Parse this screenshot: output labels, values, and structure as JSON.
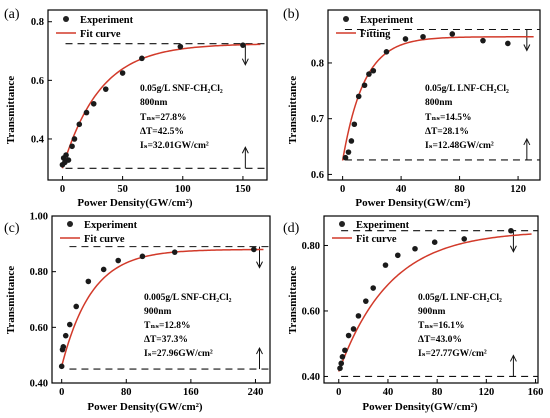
{
  "panels": [
    {
      "label": "(a)",
      "xlabel": "Power Density(GW/cm²)",
      "ylabel": "Transmittance",
      "xlim": [
        -12,
        170
      ],
      "ylim": [
        0.26,
        0.84
      ],
      "xticks": [
        "0",
        "50",
        "100",
        "150"
      ],
      "xtick_values": [
        0,
        50,
        100,
        150
      ],
      "yticks": [
        "0.4",
        "0.6",
        "0.8"
      ],
      "ytick_values": [
        0.4,
        0.6,
        0.8
      ],
      "legend": [
        "Experiment",
        "Fit curve"
      ],
      "annotation": [
        "0.05g/L SNF-CH₂Cl₂",
        "800nm",
        "Tₙₛ=27.8%",
        "ΔT=42.5%",
        "Iₛ=32.01GW/cm²"
      ],
      "upper_line": 0.725,
      "lower_line": 0.3,
      "arrow_x": 152,
      "fit": {
        "tmin": 0.3,
        "tmax": 0.725,
        "k": 0.032
      },
      "points": [
        [
          0,
          0.312
        ],
        [
          1,
          0.335
        ],
        [
          2,
          0.32
        ],
        [
          3,
          0.345
        ],
        [
          5,
          0.328
        ],
        [
          8,
          0.375
        ],
        [
          10,
          0.4
        ],
        [
          14,
          0.45
        ],
        [
          20,
          0.49
        ],
        [
          26,
          0.52
        ],
        [
          36,
          0.57
        ],
        [
          50,
          0.625
        ],
        [
          66,
          0.675
        ],
        [
          98,
          0.715
        ],
        [
          150,
          0.72
        ]
      ]
    },
    {
      "label": "(b)",
      "xlabel": "Power Density(GW/cm²)",
      "ylabel": "Transmittance",
      "xlim": [
        -10,
        135
      ],
      "ylim": [
        0.59,
        0.895
      ],
      "xticks": [
        "0",
        "40",
        "80",
        "120"
      ],
      "xtick_values": [
        0,
        40,
        80,
        120
      ],
      "yticks": [
        "0.6",
        "0.7",
        "0.8"
      ],
      "ytick_values": [
        0.6,
        0.7,
        0.8
      ],
      "legend": [
        "Experiment",
        "Fitting"
      ],
      "annotation": [
        "0.05g/L LNF-CH₂Cl₂",
        "800nm",
        "Tₙₛ=14.5%",
        "ΔT=28.1%",
        "Iₛ=12.48GW/cm²"
      ],
      "upper_line": 0.86,
      "lower_line": 0.626,
      "arrow_x": 126,
      "fit": {
        "tmin": 0.625,
        "tmax": 0.847,
        "k": 0.068
      },
      "points": [
        [
          2,
          0.63
        ],
        [
          4,
          0.64
        ],
        [
          6,
          0.66
        ],
        [
          8,
          0.69
        ],
        [
          11,
          0.74
        ],
        [
          15,
          0.76
        ],
        [
          18,
          0.78
        ],
        [
          21,
          0.786
        ],
        [
          30,
          0.82
        ],
        [
          43,
          0.843
        ],
        [
          55,
          0.847
        ],
        [
          75,
          0.852
        ],
        [
          96,
          0.84
        ],
        [
          113,
          0.835
        ]
      ]
    },
    {
      "label": "(c)",
      "xlabel": "Power Density(GW/cm²)",
      "ylabel": "Transmittance",
      "xlim": [
        -12,
        258
      ],
      "ylim": [
        0.4,
        1.0
      ],
      "xticks": [
        "0",
        "80",
        "160",
        "240"
      ],
      "xtick_values": [
        0,
        80,
        160,
        240
      ],
      "yticks": [
        "0.40",
        "0.60",
        "0.80",
        "1.00"
      ],
      "ytick_values": [
        0.4,
        0.6,
        0.8,
        1.0
      ],
      "legend": [
        "Experiment",
        "Fit curve"
      ],
      "annotation": [
        "0.005g/L SNF-CH₂Cl₂",
        "900nm",
        "Tₙₛ=12.8%",
        "ΔT=37.3%",
        "Iₛ=27.96GW/cm²"
      ],
      "upper_line": 0.89,
      "lower_line": 0.45,
      "arrow_x": 245,
      "fit": {
        "tmin": 0.46,
        "tmax": 0.88,
        "k": 0.027
      },
      "points": [
        [
          0,
          0.46
        ],
        [
          1,
          0.52
        ],
        [
          2,
          0.53
        ],
        [
          5,
          0.57
        ],
        [
          10,
          0.61
        ],
        [
          18,
          0.675
        ],
        [
          33,
          0.765
        ],
        [
          52,
          0.808
        ],
        [
          70,
          0.84
        ],
        [
          100,
          0.855
        ],
        [
          140,
          0.87
        ],
        [
          238,
          0.88
        ]
      ]
    },
    {
      "label": "(d)",
      "xlabel": "Power Density(GW/cm²)",
      "ylabel": "Transmittance",
      "xlim": [
        -12,
        162
      ],
      "ylim": [
        0.38,
        0.89
      ],
      "xticks": [
        "0",
        "40",
        "80",
        "120",
        "160"
      ],
      "xtick_values": [
        0,
        40,
        80,
        120,
        160
      ],
      "yticks": [
        "0.40",
        "0.60",
        "0.80"
      ],
      "ytick_values": [
        0.4,
        0.6,
        0.8
      ],
      "legend": [
        "Experiment",
        "Fit curve"
      ],
      "annotation": [
        "0.05g/L LNF-CH₂Cl₂",
        "900nm",
        "Tₙₛ=16.1%",
        "ΔT=43.0%",
        "Iₛ=27.77GW/cm²"
      ],
      "upper_line": 0.845,
      "lower_line": 0.4,
      "arrow_x": 142,
      "fit": {
        "tmin": 0.415,
        "tmax": 0.845,
        "k": 0.024
      },
      "points": [
        [
          1,
          0.425
        ],
        [
          2,
          0.44
        ],
        [
          3,
          0.46
        ],
        [
          5,
          0.48
        ],
        [
          8,
          0.525
        ],
        [
          12,
          0.545
        ],
        [
          16,
          0.585
        ],
        [
          22,
          0.63
        ],
        [
          28,
          0.67
        ],
        [
          38,
          0.74
        ],
        [
          48,
          0.77
        ],
        [
          62,
          0.79
        ],
        [
          78,
          0.81
        ],
        [
          102,
          0.82
        ],
        [
          140,
          0.845
        ]
      ]
    }
  ]
}
